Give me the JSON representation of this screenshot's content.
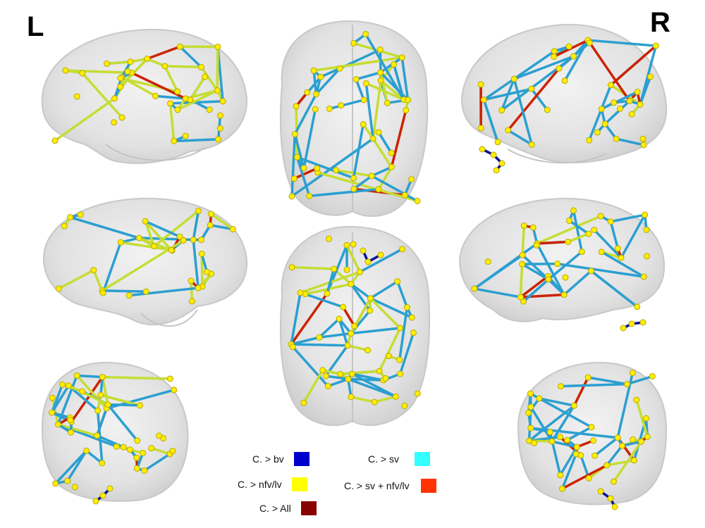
{
  "labels": {
    "left": "L",
    "right": "R"
  },
  "legend": [
    {
      "label": "C. > bv",
      "color": "#0000cc"
    },
    {
      "label": "C. > sv",
      "color": "#33ffff"
    },
    {
      "label": "C. > nfv/lv",
      "color": "#ffff00"
    },
    {
      "label": "C. > sv + nfv/lv",
      "color": "#ff3300"
    },
    {
      "label": "C. > All",
      "color": "#880000"
    }
  ],
  "colors": {
    "edge_sv": "#2b9fd1",
    "edge_nfv": "#c5dd33",
    "edge_combined": "#cc2200",
    "edge_bv": "#001199",
    "node": "#ffee00",
    "brain": "#d8d8d8"
  }
}
